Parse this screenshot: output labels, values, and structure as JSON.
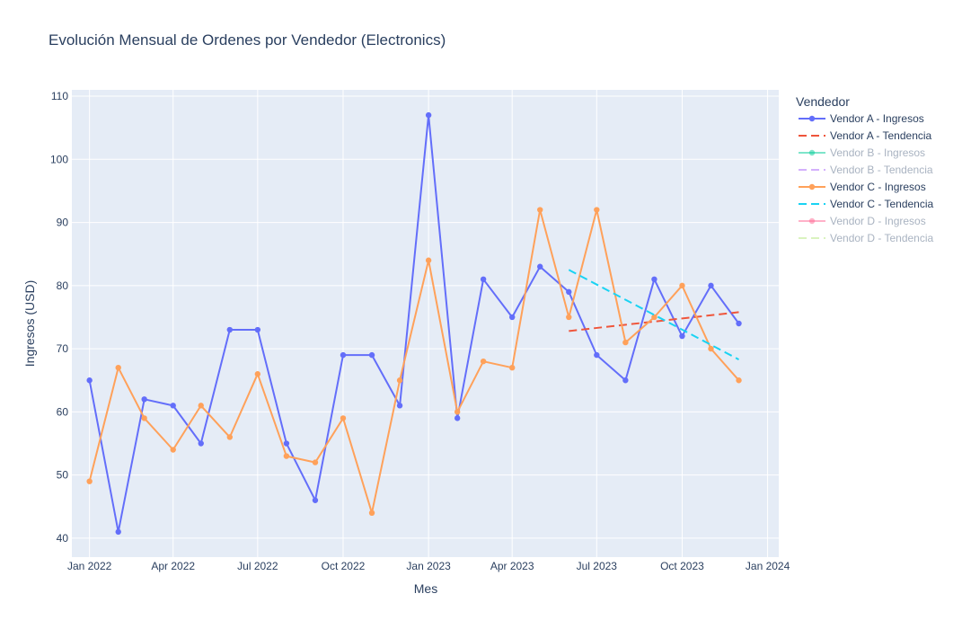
{
  "chart_data": {
    "type": "line",
    "title": "Evolución Mensual de Ordenes por Vendedor (Electronics)",
    "xlabel": "Mes",
    "ylabel": "Ingresos (USD)",
    "x_ticks": [
      "Jan 2022",
      "Apr 2022",
      "Jul 2022",
      "Oct 2022",
      "Jan 2023",
      "Apr 2023",
      "Jul 2023",
      "Oct 2023",
      "Jan 2024"
    ],
    "y_ticks": [
      40,
      50,
      60,
      70,
      80,
      90,
      100,
      110
    ],
    "ylim": [
      37,
      111
    ],
    "xlim": [
      "2021-12-13",
      "2024-01-13"
    ],
    "grid": true,
    "legend_title": "Vendedor",
    "legend_position": "right",
    "series": [
      {
        "name": "Vendor A - Ingresos",
        "color": "#636efa",
        "style": "lines+markers",
        "visible": true,
        "x": [
          "2022-01-01",
          "2022-02-01",
          "2022-03-01",
          "2022-04-01",
          "2022-05-01",
          "2022-06-01",
          "2022-07-01",
          "2022-08-01",
          "2022-09-01",
          "2022-10-01",
          "2022-11-01",
          "2022-12-01",
          "2023-01-01",
          "2023-02-01",
          "2023-03-01",
          "2023-04-01",
          "2023-05-01",
          "2023-06-01",
          "2023-07-01",
          "2023-08-01",
          "2023-09-01",
          "2023-10-01",
          "2023-11-01",
          "2023-12-01"
        ],
        "y": [
          65,
          41,
          62,
          61,
          55,
          73,
          73,
          55,
          46,
          69,
          69,
          61,
          107,
          59,
          81,
          75,
          83,
          79,
          69,
          65,
          81,
          72,
          80,
          74
        ]
      },
      {
        "name": "Vendor A - Tendencia",
        "color": "#ef553b",
        "style": "dash",
        "visible": true,
        "x": [
          "2023-06-01",
          "2023-12-01"
        ],
        "y": [
          72.8,
          75.8
        ]
      },
      {
        "name": "Vendor B - Ingresos",
        "color": "#00cc96",
        "style": "lines+markers",
        "visible": false,
        "x": [],
        "y": []
      },
      {
        "name": "Vendor B - Tendencia",
        "color": "#ab63fa",
        "style": "dash",
        "visible": false,
        "x": [],
        "y": []
      },
      {
        "name": "Vendor C - Ingresos",
        "color": "#ffa15a",
        "style": "lines+markers",
        "visible": true,
        "x": [
          "2022-01-01",
          "2022-02-01",
          "2022-03-01",
          "2022-04-01",
          "2022-05-01",
          "2022-06-01",
          "2022-07-01",
          "2022-08-01",
          "2022-09-01",
          "2022-10-01",
          "2022-11-01",
          "2022-12-01",
          "2023-01-01",
          "2023-02-01",
          "2023-03-01",
          "2023-04-01",
          "2023-05-01",
          "2023-06-01",
          "2023-07-01",
          "2023-08-01",
          "2023-09-01",
          "2023-10-01",
          "2023-11-01",
          "2023-12-01"
        ],
        "y": [
          49,
          67,
          59,
          54,
          61,
          56,
          66,
          53,
          52,
          59,
          44,
          65,
          84,
          60,
          68,
          67,
          92,
          75,
          92,
          71,
          75,
          80,
          70,
          65
        ]
      },
      {
        "name": "Vendor C - Tendencia",
        "color": "#19d3f3",
        "style": "dash",
        "visible": true,
        "x": [
          "2023-06-01",
          "2023-12-01"
        ],
        "y": [
          82.5,
          68.3
        ]
      },
      {
        "name": "Vendor D - Ingresos",
        "color": "#ff6692",
        "style": "lines+markers",
        "visible": false,
        "x": [],
        "y": []
      },
      {
        "name": "Vendor D - Tendencia",
        "color": "#b6e880",
        "style": "dash",
        "visible": false,
        "x": [],
        "y": []
      }
    ]
  }
}
